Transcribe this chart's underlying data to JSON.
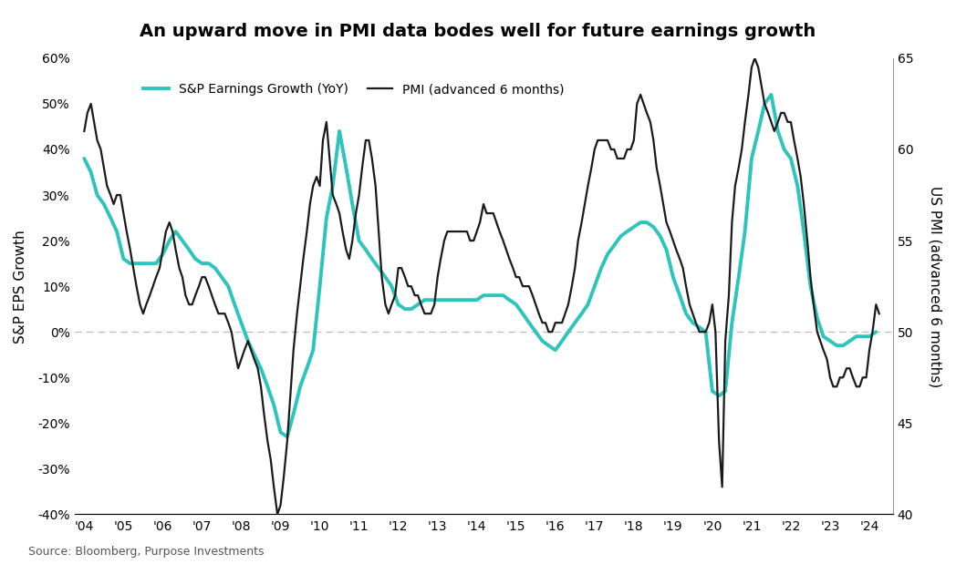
{
  "title": "An upward move in PMI data bodes well for future earnings growth",
  "ylabel_left": "S&P EPS Growth",
  "ylabel_right": "US PMI (advanced 6 months)",
  "legend_sp": "S&P Earnings Growth (YoY)",
  "legend_pmi": "PMI (advanced 6 months)",
  "source": "Source: Bloomberg, Purpose Investments",
  "ylim_left": [
    -0.4,
    0.6
  ],
  "ylim_right": [
    40,
    65
  ],
  "sp_color": "#2dc4bc",
  "pmi_color": "#1a1a1a",
  "background_color": "#ffffff",
  "grid_color": "#cccccc",
  "sp_linewidth": 2.8,
  "pmi_linewidth": 1.6,
  "xtick_positions": [
    2004,
    2005,
    2006,
    2007,
    2008,
    2009,
    2010,
    2011,
    2012,
    2013,
    2014,
    2015,
    2016,
    2017,
    2018,
    2019,
    2020,
    2021,
    2022,
    2023,
    2024
  ],
  "xtick_labels": [
    "'04",
    "'05",
    "'06",
    "'07",
    "'08",
    "'09",
    "'10",
    "'11",
    "'12",
    "'13",
    "'14",
    "'15",
    "'16",
    "'17",
    "'18",
    "'19",
    "'20",
    "'21",
    "'22",
    "'23",
    "'24"
  ],
  "ytick_left": [
    -0.4,
    -0.3,
    -0.2,
    -0.1,
    0.0,
    0.1,
    0.2,
    0.3,
    0.4,
    0.5,
    0.6
  ],
  "ytick_right": [
    40,
    45,
    50,
    55,
    60,
    65
  ],
  "sp_dates": [
    2004.0,
    2004.17,
    2004.33,
    2004.5,
    2004.67,
    2004.83,
    2005.0,
    2005.17,
    2005.33,
    2005.5,
    2005.67,
    2005.83,
    2006.0,
    2006.17,
    2006.33,
    2006.5,
    2006.67,
    2006.83,
    2007.0,
    2007.17,
    2007.33,
    2007.5,
    2007.67,
    2007.83,
    2008.0,
    2008.17,
    2008.33,
    2008.5,
    2008.67,
    2008.83,
    2009.0,
    2009.17,
    2009.33,
    2009.5,
    2009.67,
    2009.83,
    2010.0,
    2010.17,
    2010.33,
    2010.5,
    2010.67,
    2010.83,
    2011.0,
    2011.17,
    2011.33,
    2011.5,
    2011.67,
    2011.83,
    2012.0,
    2012.17,
    2012.33,
    2012.5,
    2012.67,
    2012.83,
    2013.0,
    2013.17,
    2013.33,
    2013.5,
    2013.67,
    2013.83,
    2014.0,
    2014.17,
    2014.33,
    2014.5,
    2014.67,
    2014.83,
    2015.0,
    2015.17,
    2015.33,
    2015.5,
    2015.67,
    2015.83,
    2016.0,
    2016.17,
    2016.33,
    2016.5,
    2016.67,
    2016.83,
    2017.0,
    2017.17,
    2017.33,
    2017.5,
    2017.67,
    2017.83,
    2018.0,
    2018.17,
    2018.33,
    2018.5,
    2018.67,
    2018.83,
    2019.0,
    2019.17,
    2019.33,
    2019.5,
    2019.67,
    2019.83,
    2020.0,
    2020.17,
    2020.33,
    2020.5,
    2020.67,
    2020.83,
    2021.0,
    2021.17,
    2021.33,
    2021.5,
    2021.67,
    2021.83,
    2022.0,
    2022.17,
    2022.33,
    2022.5,
    2022.67,
    2022.83,
    2023.0,
    2023.17,
    2023.33,
    2023.5,
    2023.67,
    2023.83,
    2024.0,
    2024.17
  ],
  "sp_values": [
    0.38,
    0.35,
    0.3,
    0.28,
    0.25,
    0.22,
    0.16,
    0.15,
    0.15,
    0.15,
    0.15,
    0.15,
    0.17,
    0.2,
    0.22,
    0.2,
    0.18,
    0.16,
    0.15,
    0.15,
    0.14,
    0.12,
    0.1,
    0.06,
    0.02,
    -0.02,
    -0.05,
    -0.08,
    -0.12,
    -0.16,
    -0.22,
    -0.23,
    -0.18,
    -0.12,
    -0.08,
    -0.04,
    0.1,
    0.25,
    0.32,
    0.44,
    0.36,
    0.28,
    0.2,
    0.18,
    0.16,
    0.14,
    0.12,
    0.1,
    0.06,
    0.05,
    0.05,
    0.06,
    0.07,
    0.07,
    0.07,
    0.07,
    0.07,
    0.07,
    0.07,
    0.07,
    0.07,
    0.08,
    0.08,
    0.08,
    0.08,
    0.07,
    0.06,
    0.04,
    0.02,
    0.0,
    -0.02,
    -0.03,
    -0.04,
    -0.02,
    0.0,
    0.02,
    0.04,
    0.06,
    0.1,
    0.14,
    0.17,
    0.19,
    0.21,
    0.22,
    0.23,
    0.24,
    0.24,
    0.23,
    0.21,
    0.18,
    0.12,
    0.08,
    0.04,
    0.02,
    0.01,
    0.0,
    -0.13,
    -0.14,
    -0.13,
    0.02,
    0.12,
    0.22,
    0.38,
    0.44,
    0.5,
    0.52,
    0.44,
    0.4,
    0.38,
    0.32,
    0.22,
    0.1,
    0.03,
    -0.01,
    -0.02,
    -0.03,
    -0.03,
    -0.02,
    -0.01,
    -0.01,
    -0.01,
    0.0
  ],
  "pmi_dates": [
    2004.0,
    2004.08,
    2004.17,
    2004.25,
    2004.33,
    2004.42,
    2004.5,
    2004.58,
    2004.67,
    2004.75,
    2004.83,
    2004.92,
    2005.0,
    2005.08,
    2005.17,
    2005.25,
    2005.33,
    2005.42,
    2005.5,
    2005.58,
    2005.67,
    2005.75,
    2005.83,
    2005.92,
    2006.0,
    2006.08,
    2006.17,
    2006.25,
    2006.33,
    2006.42,
    2006.5,
    2006.58,
    2006.67,
    2006.75,
    2006.83,
    2006.92,
    2007.0,
    2007.08,
    2007.17,
    2007.25,
    2007.33,
    2007.42,
    2007.5,
    2007.58,
    2007.67,
    2007.75,
    2007.83,
    2007.92,
    2008.0,
    2008.08,
    2008.17,
    2008.25,
    2008.33,
    2008.42,
    2008.5,
    2008.58,
    2008.67,
    2008.75,
    2008.83,
    2008.92,
    2009.0,
    2009.08,
    2009.17,
    2009.25,
    2009.33,
    2009.42,
    2009.5,
    2009.58,
    2009.67,
    2009.75,
    2009.83,
    2009.92,
    2010.0,
    2010.08,
    2010.17,
    2010.25,
    2010.33,
    2010.42,
    2010.5,
    2010.58,
    2010.67,
    2010.75,
    2010.83,
    2010.92,
    2011.0,
    2011.08,
    2011.17,
    2011.25,
    2011.33,
    2011.42,
    2011.5,
    2011.58,
    2011.67,
    2011.75,
    2011.83,
    2011.92,
    2012.0,
    2012.08,
    2012.17,
    2012.25,
    2012.33,
    2012.42,
    2012.5,
    2012.58,
    2012.67,
    2012.75,
    2012.83,
    2012.92,
    2013.0,
    2013.08,
    2013.17,
    2013.25,
    2013.33,
    2013.42,
    2013.5,
    2013.58,
    2013.67,
    2013.75,
    2013.83,
    2013.92,
    2014.0,
    2014.08,
    2014.17,
    2014.25,
    2014.33,
    2014.42,
    2014.5,
    2014.58,
    2014.67,
    2014.75,
    2014.83,
    2014.92,
    2015.0,
    2015.08,
    2015.17,
    2015.25,
    2015.33,
    2015.42,
    2015.5,
    2015.58,
    2015.67,
    2015.75,
    2015.83,
    2015.92,
    2016.0,
    2016.08,
    2016.17,
    2016.25,
    2016.33,
    2016.42,
    2016.5,
    2016.58,
    2016.67,
    2016.75,
    2016.83,
    2016.92,
    2017.0,
    2017.08,
    2017.17,
    2017.25,
    2017.33,
    2017.42,
    2017.5,
    2017.58,
    2017.67,
    2017.75,
    2017.83,
    2017.92,
    2018.0,
    2018.08,
    2018.17,
    2018.25,
    2018.33,
    2018.42,
    2018.5,
    2018.58,
    2018.67,
    2018.75,
    2018.83,
    2018.92,
    2019.0,
    2019.08,
    2019.17,
    2019.25,
    2019.33,
    2019.42,
    2019.5,
    2019.58,
    2019.67,
    2019.75,
    2019.83,
    2019.92,
    2020.0,
    2020.08,
    2020.17,
    2020.25,
    2020.33,
    2020.42,
    2020.5,
    2020.58,
    2020.67,
    2020.75,
    2020.83,
    2020.92,
    2021.0,
    2021.08,
    2021.17,
    2021.25,
    2021.33,
    2021.42,
    2021.5,
    2021.58,
    2021.67,
    2021.75,
    2021.83,
    2021.92,
    2022.0,
    2022.08,
    2022.17,
    2022.25,
    2022.33,
    2022.42,
    2022.5,
    2022.58,
    2022.67,
    2022.75,
    2022.83,
    2022.92,
    2023.0,
    2023.08,
    2023.17,
    2023.25,
    2023.33,
    2023.42,
    2023.5,
    2023.58,
    2023.67,
    2023.75,
    2023.83,
    2023.92,
    2024.0,
    2024.08,
    2024.17,
    2024.25
  ],
  "pmi_values": [
    61.0,
    62.0,
    62.5,
    61.5,
    60.5,
    60.0,
    59.0,
    58.0,
    57.5,
    57.0,
    57.5,
    57.5,
    56.5,
    55.5,
    54.5,
    53.5,
    52.5,
    51.5,
    51.0,
    51.5,
    52.0,
    52.5,
    53.0,
    53.5,
    54.5,
    55.5,
    56.0,
    55.5,
    54.5,
    53.5,
    53.0,
    52.0,
    51.5,
    51.5,
    52.0,
    52.5,
    53.0,
    53.0,
    52.5,
    52.0,
    51.5,
    51.0,
    51.0,
    51.0,
    50.5,
    50.0,
    49.0,
    48.0,
    48.5,
    49.0,
    49.5,
    49.0,
    48.5,
    48.0,
    47.0,
    45.5,
    44.0,
    43.0,
    41.5,
    40.0,
    40.5,
    42.0,
    44.0,
    46.5,
    49.0,
    51.0,
    52.5,
    54.0,
    55.5,
    57.0,
    58.0,
    58.5,
    58.0,
    60.5,
    61.5,
    59.5,
    57.5,
    57.0,
    56.5,
    55.5,
    54.5,
    54.0,
    55.0,
    56.5,
    57.5,
    59.0,
    60.5,
    60.5,
    59.5,
    58.0,
    55.5,
    53.0,
    51.5,
    51.0,
    51.5,
    52.0,
    53.5,
    53.5,
    53.0,
    52.5,
    52.5,
    52.0,
    52.0,
    51.5,
    51.0,
    51.0,
    51.0,
    51.5,
    53.0,
    54.0,
    55.0,
    55.5,
    55.5,
    55.5,
    55.5,
    55.5,
    55.5,
    55.5,
    55.0,
    55.0,
    55.5,
    56.0,
    57.0,
    56.5,
    56.5,
    56.5,
    56.0,
    55.5,
    55.0,
    54.5,
    54.0,
    53.5,
    53.0,
    53.0,
    52.5,
    52.5,
    52.5,
    52.0,
    51.5,
    51.0,
    50.5,
    50.5,
    50.0,
    50.0,
    50.5,
    50.5,
    50.5,
    51.0,
    51.5,
    52.5,
    53.5,
    55.0,
    56.0,
    57.0,
    58.0,
    59.0,
    60.0,
    60.5,
    60.5,
    60.5,
    60.5,
    60.0,
    60.0,
    59.5,
    59.5,
    59.5,
    60.0,
    60.0,
    60.5,
    62.5,
    63.0,
    62.5,
    62.0,
    61.5,
    60.5,
    59.0,
    58.0,
    57.0,
    56.0,
    55.5,
    55.0,
    54.5,
    54.0,
    53.5,
    52.5,
    51.5,
    51.0,
    50.5,
    50.0,
    50.0,
    50.0,
    50.5,
    51.5,
    50.0,
    44.0,
    41.5,
    49.5,
    52.0,
    56.0,
    58.0,
    59.0,
    60.0,
    61.5,
    63.0,
    64.5,
    65.0,
    64.5,
    63.5,
    62.5,
    62.0,
    61.5,
    61.0,
    61.5,
    62.0,
    62.0,
    61.5,
    61.5,
    60.5,
    59.5,
    58.5,
    57.0,
    55.0,
    53.0,
    51.5,
    50.0,
    49.5,
    49.0,
    48.5,
    47.5,
    47.0,
    47.0,
    47.5,
    47.5,
    48.0,
    48.0,
    47.5,
    47.0,
    47.0,
    47.5,
    47.5,
    49.0,
    50.0,
    51.5,
    51.0
  ]
}
